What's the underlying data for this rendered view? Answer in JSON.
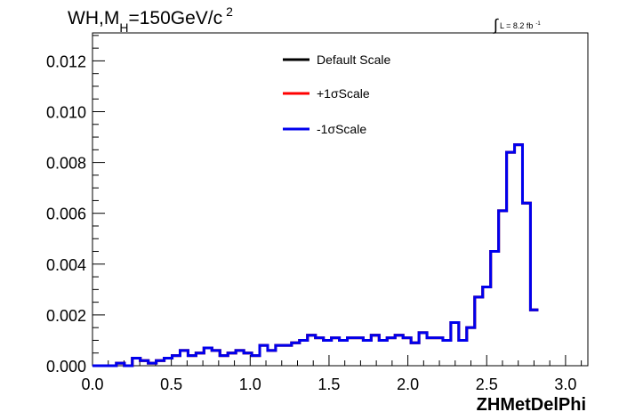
{
  "chart_data": {
    "type": "line",
    "title": "WH,M",
    "title_subscript": "H",
    "title_rest": "=150GeV/c",
    "title_superscript": "2",
    "lumi_integral": "∫",
    "lumi_text": "L = 8.2 fb",
    "lumi_superscript": "-1",
    "xlabel": "ZHMetDelPhi",
    "ylabel": "",
    "xlim": [
      0,
      3.1416
    ],
    "ylim": [
      0,
      0.0131
    ],
    "grid": false,
    "legend_position": "top-center",
    "xticks": [
      "0.0",
      "0.5",
      "1.0",
      "1.5",
      "2.0",
      "2.5",
      "3.0"
    ],
    "xtick_values": [
      0.0,
      0.5,
      1.0,
      1.5,
      2.0,
      2.5,
      3.0
    ],
    "yticks": [
      "0.000",
      "0.002",
      "0.004",
      "0.006",
      "0.008",
      "0.010",
      "0.012"
    ],
    "ytick_values": [
      0.0,
      0.002,
      0.004,
      0.006,
      0.008,
      0.01,
      0.012
    ],
    "bin_edges_start": 0.0,
    "bin_width": 0.0505,
    "series": [
      {
        "name": "Default Scale",
        "color": "#000000",
        "values": [
          0.0,
          0.0,
          0.0,
          0.0001,
          0.0,
          0.0003,
          0.0002,
          0.0001,
          0.0002,
          0.0003,
          0.0004,
          0.0006,
          0.0004,
          0.0005,
          0.0007,
          0.0006,
          0.0004,
          0.0005,
          0.0006,
          0.0005,
          0.0004,
          0.0008,
          0.0006,
          0.0008,
          0.0008,
          0.0009,
          0.001,
          0.0012,
          0.0011,
          0.001,
          0.0011,
          0.001,
          0.0011,
          0.0011,
          0.001,
          0.0012,
          0.001,
          0.0011,
          0.0012,
          0.0011,
          0.0009,
          0.0013,
          0.0011,
          0.0011,
          0.001,
          0.0017,
          0.001,
          0.0015,
          0.0027,
          0.0031,
          0.0045,
          0.0061,
          0.0084,
          0.0087,
          0.0064,
          0.0022
        ]
      },
      {
        "name": "+1σScale",
        "color": "#ff0000",
        "values": [
          0.0,
          0.0,
          0.0,
          0.0001,
          0.0,
          0.0003,
          0.0002,
          0.0001,
          0.0002,
          0.0003,
          0.0004,
          0.0006,
          0.0004,
          0.0005,
          0.0007,
          0.0006,
          0.0004,
          0.0005,
          0.0006,
          0.0005,
          0.0004,
          0.0008,
          0.0006,
          0.0008,
          0.0008,
          0.0009,
          0.001,
          0.0012,
          0.0011,
          0.001,
          0.0011,
          0.001,
          0.0011,
          0.0011,
          0.001,
          0.0012,
          0.001,
          0.0011,
          0.0012,
          0.0011,
          0.0009,
          0.0013,
          0.0011,
          0.0011,
          0.001,
          0.0017,
          0.001,
          0.0015,
          0.0027,
          0.0031,
          0.0045,
          0.0061,
          0.0084,
          0.0087,
          0.0064,
          0.0022
        ]
      },
      {
        "name": "-1σScale",
        "color": "#0000ee",
        "values": [
          0.0,
          0.0,
          0.0,
          0.0001,
          0.0,
          0.0003,
          0.0002,
          0.0001,
          0.0002,
          0.0003,
          0.0004,
          0.0006,
          0.0004,
          0.0005,
          0.0007,
          0.0006,
          0.0004,
          0.0005,
          0.0006,
          0.0005,
          0.0004,
          0.0008,
          0.0006,
          0.0008,
          0.0008,
          0.0009,
          0.001,
          0.0012,
          0.0011,
          0.001,
          0.0011,
          0.001,
          0.0011,
          0.0011,
          0.001,
          0.0012,
          0.001,
          0.0011,
          0.0012,
          0.0011,
          0.0009,
          0.0013,
          0.0011,
          0.0011,
          0.001,
          0.0017,
          0.001,
          0.0015,
          0.0027,
          0.0031,
          0.0045,
          0.0061,
          0.0084,
          0.0087,
          0.0064,
          0.0022
        ]
      }
    ]
  }
}
